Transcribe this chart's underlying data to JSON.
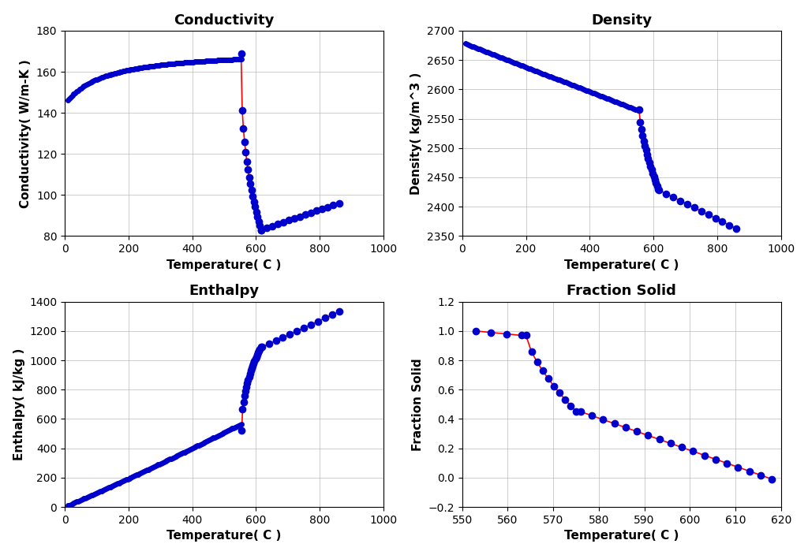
{
  "conductivity": {
    "title": "Conductivity",
    "xlabel": "Temperature( C )",
    "ylabel": "Conductivity( W/m-K )",
    "xlim": [
      0,
      1000
    ],
    "ylim": [
      80,
      180
    ],
    "xticks": [
      0,
      200,
      400,
      600,
      800,
      1000
    ],
    "yticks": [
      80,
      100,
      120,
      140,
      160,
      180
    ]
  },
  "density": {
    "title": "Density",
    "xlabel": "Temperature( C )",
    "ylabel": "Density( kg/m^3 )",
    "xlim": [
      0,
      1000
    ],
    "ylim": [
      2350,
      2700
    ],
    "xticks": [
      0,
      200,
      400,
      600,
      800,
      1000
    ],
    "yticks": [
      2350,
      2400,
      2450,
      2500,
      2550,
      2600,
      2650,
      2700
    ]
  },
  "enthalpy": {
    "title": "Enthalpy",
    "xlabel": "Temperature( C )",
    "ylabel": "Enthalpy( kJ/kg )",
    "xlim": [
      0,
      1000
    ],
    "ylim": [
      0,
      1400
    ],
    "xticks": [
      0,
      200,
      400,
      600,
      800,
      1000
    ],
    "yticks": [
      0,
      200,
      400,
      600,
      800,
      1000,
      1200,
      1400
    ]
  },
  "fraction_solid": {
    "title": "Fraction Solid",
    "xlabel": "Temperature( C )",
    "ylabel": "Fraction Solid",
    "xlim": [
      550,
      620
    ],
    "ylim": [
      -0.2,
      1.2
    ],
    "xticks": [
      550,
      560,
      570,
      580,
      590,
      600,
      610,
      620
    ],
    "yticks": [
      -0.2,
      0.0,
      0.2,
      0.4,
      0.6,
      0.8,
      1.0,
      1.2
    ]
  },
  "dot_color": "#0000CC",
  "line_color": "#FF0000",
  "grid_color": "#BBBBBB",
  "title_fontsize": 13,
  "label_fontsize": 11,
  "tick_fontsize": 10,
  "dot_size": 5,
  "line_width": 1.2
}
